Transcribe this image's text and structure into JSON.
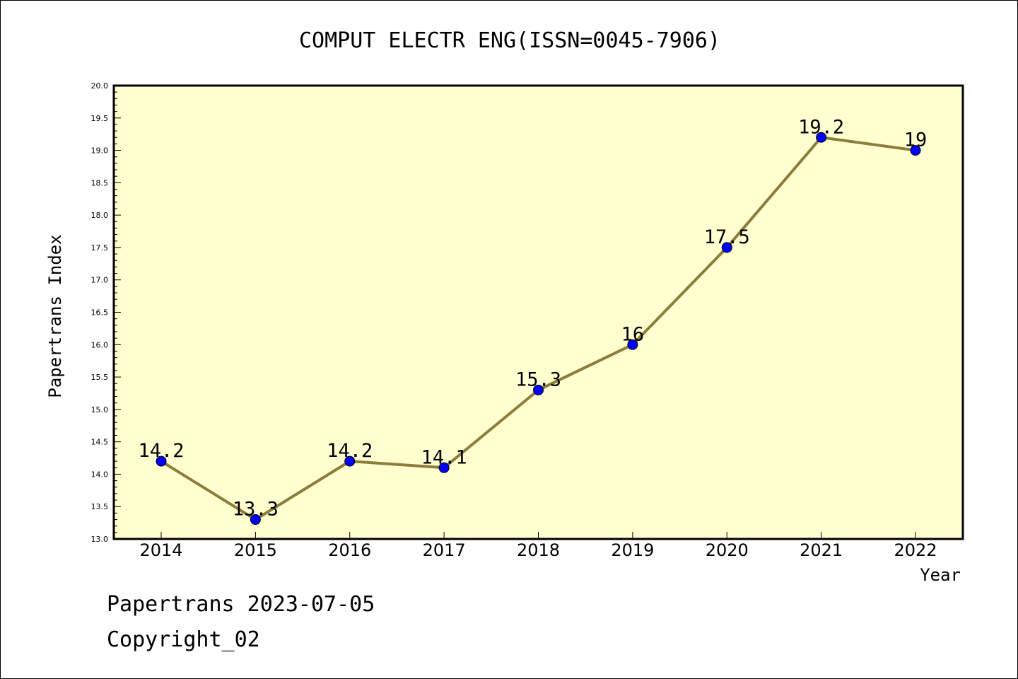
{
  "chart_data": {
    "type": "line",
    "title": "COMPUT ELECTR ENG(ISSN=0045-7906)",
    "xlabel": "Year",
    "ylabel": "Papertrans Index",
    "categories": [
      "2014",
      "2015",
      "2016",
      "2017",
      "2018",
      "2019",
      "2020",
      "2021",
      "2022"
    ],
    "series": [
      {
        "values": [
          14.2,
          13.3,
          14.2,
          14.1,
          15.3,
          16,
          17.5,
          19.2,
          19
        ]
      }
    ],
    "data_labels": [
      "14.2",
      "13.3",
      "14.2",
      "14.1",
      "15.3",
      "16",
      "17.5",
      "19.2",
      "19"
    ],
    "ylim": [
      13.0,
      20.0
    ],
    "y_major_step": 0.5,
    "y_minor_step": 0.1,
    "yticks": [
      "13.0",
      "13.5",
      "14.0",
      "14.5",
      "15.0",
      "15.5",
      "16.0",
      "16.5",
      "17.0",
      "17.5",
      "18.0",
      "18.5",
      "19.0",
      "19.5",
      "20.0"
    ],
    "grid": false,
    "colors": {
      "plot_bg": "#ffffd0",
      "line": "#8b7d3a",
      "marker": "#0000ff"
    }
  },
  "footer": {
    "line1": "Papertrans 2023-07-05",
    "line2": "Copyright_02"
  }
}
